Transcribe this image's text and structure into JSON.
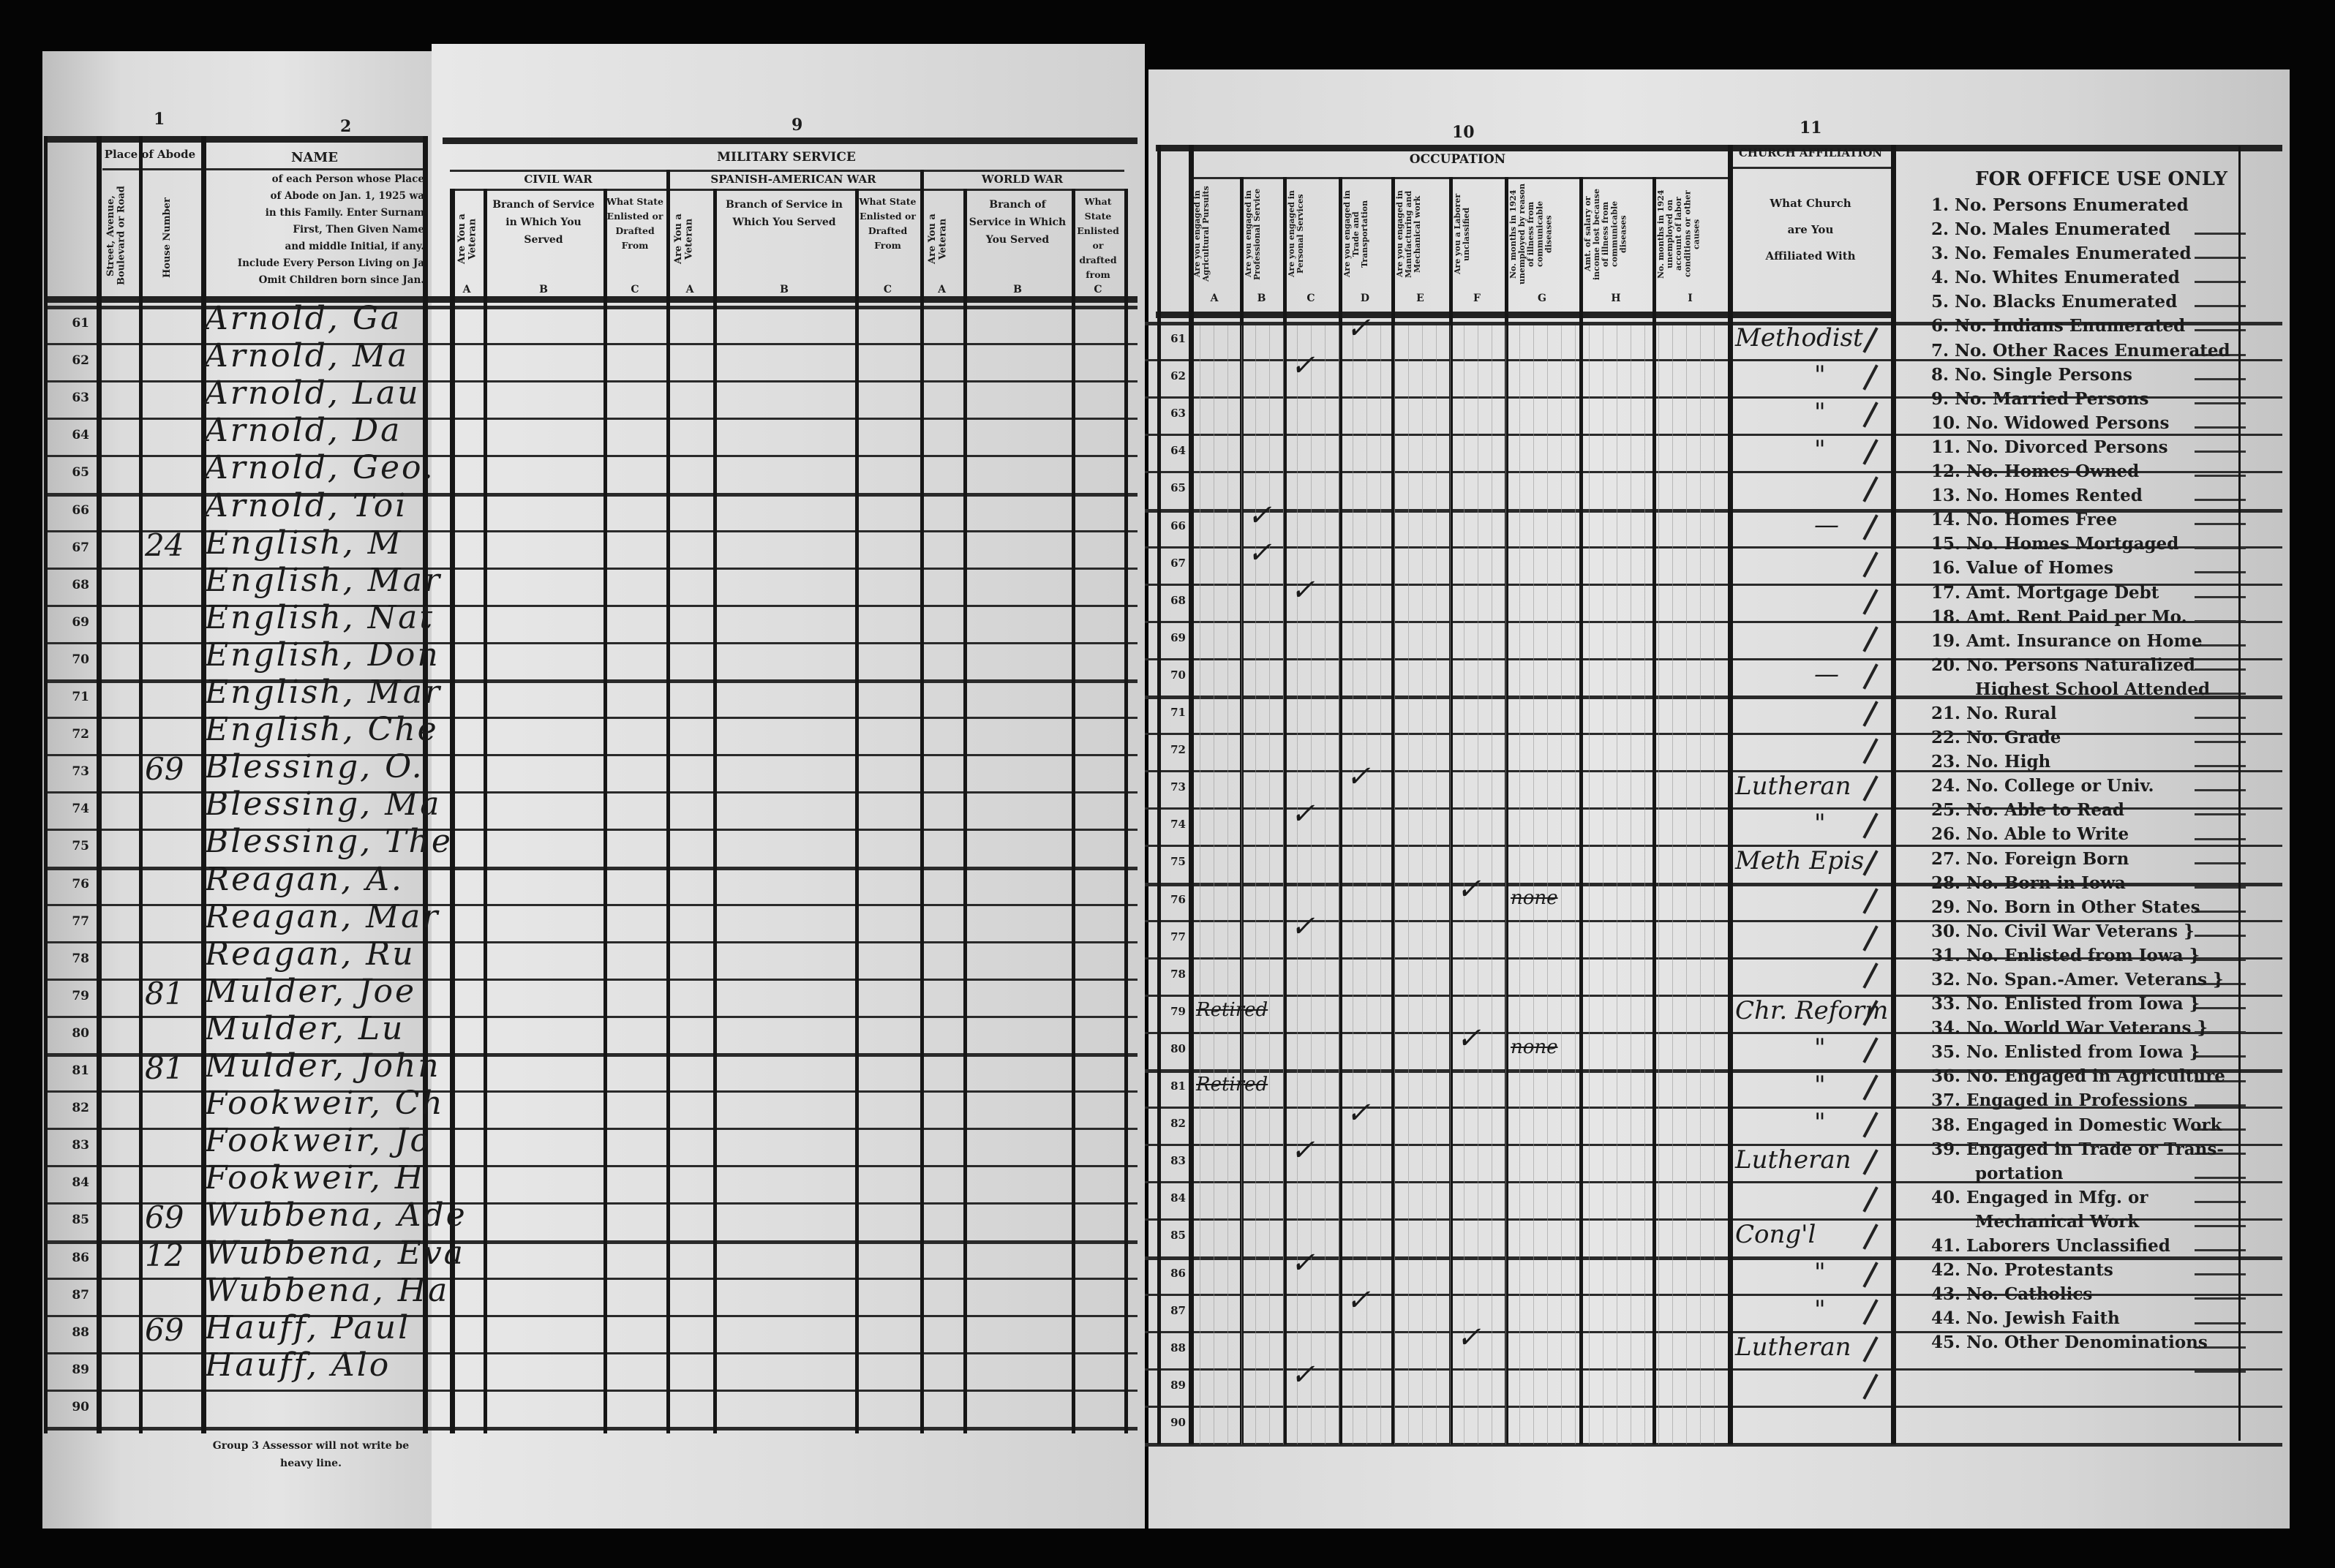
{
  "document": {
    "column_numbers": {
      "c1": "1",
      "c2": "2",
      "c9": "9",
      "c10": "10",
      "c11": "11"
    },
    "left_header": {
      "place_of_abode": "Place of Abode",
      "street": "Street, Avenue, Boulevard or Road",
      "house_number": "House Number",
      "name_title": "NAME",
      "name_instructions": [
        "of each Person whose Place",
        "of Abode on Jan. 1, 1925 wa",
        "in this Family. Enter Surnam",
        "First, Then Given Name",
        "and middle Initial, if any.",
        "Include Every Person Living on Ja",
        "Omit Children born since Jan."
      ],
      "footer_note": [
        "Group 3 Assessor will not write be",
        "heavy line."
      ]
    },
    "military": {
      "title": "MILITARY SERVICE",
      "wars": [
        {
          "name": "CIVIL WAR",
          "a": "Are You a Veteran",
          "b": "Branch of Service in Which You Served",
          "c": "What State Enlisted or Drafted From"
        },
        {
          "name": "SPANISH-AMERICAN WAR",
          "a": "Are You a Veteran",
          "b": "Branch of Service in Which You Served",
          "c": "What State Enlisted or Drafted From"
        },
        {
          "name": "WORLD WAR",
          "a": "Are You a Veteran",
          "b": "Branch of Service in Which You Served",
          "c": "What State Enlisted or drafted from"
        }
      ],
      "letters": [
        "A",
        "B",
        "C"
      ]
    },
    "occupation": {
      "title": "OCCUPATION",
      "columns": [
        {
          "letter": "A",
          "label": "Are you engaged in Agricultural Pursuits"
        },
        {
          "letter": "B",
          "label": "Are you engaged in Professional Service"
        },
        {
          "letter": "C",
          "label": "Are you engaged in Personal Services"
        },
        {
          "letter": "D",
          "label": "Are you engaged in Trade and Transportation"
        },
        {
          "letter": "E",
          "label": "Are you engaged in Manufacturing and Mechanical work"
        },
        {
          "letter": "F",
          "label": "Are you a Laborer unclassified"
        },
        {
          "letter": "G",
          "label": "No. months in 1924 unemployed by reason of illness from communicable diseases"
        },
        {
          "letter": "H",
          "label": "Amt. of salary or income lost because of illness from communicable diseases"
        },
        {
          "letter": "I",
          "label": "No. months in 1924 unemployed on account of labor conditions or other causes"
        }
      ]
    },
    "church": {
      "title": "CHURCH AFFILIATION",
      "question": [
        "What Church",
        "are You",
        "Affiliated With"
      ]
    },
    "office_use": {
      "title": "FOR OFFICE USE ONLY",
      "items": [
        "1. No. Persons Enumerated",
        "2. No. Males Enumerated",
        "3. No. Females Enumerated",
        "4. No. Whites Enumerated",
        "5. No. Blacks Enumerated",
        "6. No. Indians Enumerated",
        "7. No. Other Races Enumerated",
        "8. No. Single Persons",
        "9. No. Married Persons",
        "10. No. Widowed Persons",
        "11. No. Divorced Persons",
        "12. No. Homes Owned",
        "13. No. Homes Rented",
        "14. No. Homes Free",
        "15. No. Homes Mortgaged",
        "16. Value of Homes",
        "17. Amt. Mortgage Debt",
        "18. Amt. Rent Paid per Mo.",
        "19. Amt. Insurance on Home",
        "20. No. Persons Naturalized",
        "Highest School Attended",
        "21. No. Rural",
        "22. No. Grade",
        "23. No. High",
        "24. No. College or Univ.",
        "25. No. Able to Read",
        "26. No. Able to Write",
        "27. No. Foreign Born",
        "28. No. Born in Iowa",
        "29. No. Born in Other States",
        "30. No. Civil War Veterans }",
        "31. No. Enlisted from Iowa }",
        "32. No. Span.-Amer. Veterans }",
        "33. No. Enlisted from Iowa }",
        "34. No. World War Veterans }",
        "35. No. Enlisted from Iowa }",
        "36. No. Engaged in Agriculture",
        "37. Engaged in Professions",
        "38. Engaged in Domestic Work",
        "39. Engaged in Trade or Trans-",
        "portation",
        "40. Engaged in Mfg. or",
        "Mechanical Work",
        "41. Laborers Unclassified",
        "42. No. Protestants",
        "43. No. Catholics",
        "44. No. Jewish Faith",
        "45. No. Other Denominations"
      ]
    },
    "rows": [
      {
        "line": "61",
        "house": "",
        "name": "Arnold, Ga",
        "occ_col": "D",
        "occ_text": "",
        "church": "Methodist"
      },
      {
        "line": "62",
        "house": "",
        "name": "Arnold, Ma",
        "occ_col": "C",
        "occ_text": "",
        "church": "\""
      },
      {
        "line": "63",
        "house": "",
        "name": "Arnold, Lau",
        "occ_col": "",
        "occ_text": "",
        "church": "\""
      },
      {
        "line": "64",
        "house": "",
        "name": "Arnold, Da",
        "occ_col": "",
        "occ_text": "",
        "church": "\""
      },
      {
        "line": "65",
        "house": "",
        "name": "Arnold, Geo.",
        "occ_col": "",
        "occ_text": "",
        "church": ""
      },
      {
        "line": "66",
        "house": "",
        "name": "Arnold, Toi",
        "occ_col": "B",
        "occ_text": "",
        "church": "—"
      },
      {
        "line": "67",
        "house": "24",
        "name": "English, M",
        "occ_col": "B",
        "occ_text": "",
        "church": ""
      },
      {
        "line": "68",
        "house": "",
        "name": "English, Mar",
        "occ_col": "C",
        "occ_text": "",
        "church": ""
      },
      {
        "line": "69",
        "house": "",
        "name": "English, Nat",
        "occ_col": "",
        "occ_text": "",
        "church": ""
      },
      {
        "line": "70",
        "house": "",
        "name": "English, Don",
        "occ_col": "",
        "occ_text": "",
        "church": "—"
      },
      {
        "line": "71",
        "house": "",
        "name": "English, Mar",
        "occ_col": "",
        "occ_text": "",
        "church": ""
      },
      {
        "line": "72",
        "house": "",
        "name": "English, Che",
        "occ_col": "",
        "occ_text": "",
        "church": ""
      },
      {
        "line": "73",
        "house": "69",
        "name": "Blessing, O.",
        "occ_col": "D",
        "occ_text": "",
        "church": "Lutheran"
      },
      {
        "line": "74",
        "house": "",
        "name": "Blessing, Ma",
        "occ_col": "C",
        "occ_text": "",
        "church": "\""
      },
      {
        "line": "75",
        "house": "",
        "name": "Blessing, The",
        "occ_col": "",
        "occ_text": "",
        "church": "Meth Epis"
      },
      {
        "line": "76",
        "house": "",
        "name": "Reagan, A.",
        "occ_col": "F",
        "occ_text": "none",
        "church": ""
      },
      {
        "line": "77",
        "house": "",
        "name": "Reagan, Mar",
        "occ_col": "C",
        "occ_text": "",
        "church": ""
      },
      {
        "line": "78",
        "house": "",
        "name": "Reagan, Ru",
        "occ_col": "",
        "occ_text": "",
        "church": ""
      },
      {
        "line": "79",
        "house": "81",
        "name": "Mulder, Joe",
        "occ_col": "",
        "occ_text": "Retired",
        "church": "Chr. Reform"
      },
      {
        "line": "80",
        "house": "",
        "name": "Mulder, Lu",
        "occ_col": "F",
        "occ_text": "none",
        "church": "\""
      },
      {
        "line": "81",
        "house": "81",
        "name": "Mulder, John",
        "occ_col": "",
        "occ_text": "Retired",
        "church": "\""
      },
      {
        "line": "82",
        "house": "",
        "name": "Fookweir, Ch",
        "occ_col": "D",
        "occ_text": "",
        "church": "\""
      },
      {
        "line": "83",
        "house": "",
        "name": "Fookweir, Jo",
        "occ_col": "C",
        "occ_text": "",
        "church": "Lutheran"
      },
      {
        "line": "84",
        "house": "",
        "name": "Fookweir, H",
        "occ_col": "",
        "occ_text": "",
        "church": ""
      },
      {
        "line": "85",
        "house": "69",
        "name": "Wubbena, Ade",
        "occ_col": "",
        "occ_text": "",
        "church": "Cong'l"
      },
      {
        "line": "86",
        "house": "12",
        "name": "Wubbena, Eva",
        "occ_col": "C",
        "occ_text": "",
        "church": "\""
      },
      {
        "line": "87",
        "house": "",
        "name": "Wubbena, Ha",
        "occ_col": "D",
        "occ_text": "",
        "church": "\""
      },
      {
        "line": "88",
        "house": "69",
        "name": "Hauff, Paul",
        "occ_col": "F",
        "occ_text": "",
        "church": "Lutheran"
      },
      {
        "line": "89",
        "house": "",
        "name": "Hauff, Alo",
        "occ_col": "C",
        "occ_text": "",
        "church": ""
      },
      {
        "line": "90",
        "house": "",
        "name": "",
        "occ_col": "",
        "occ_text": "",
        "church": ""
      }
    ],
    "check_mark": "✓"
  }
}
